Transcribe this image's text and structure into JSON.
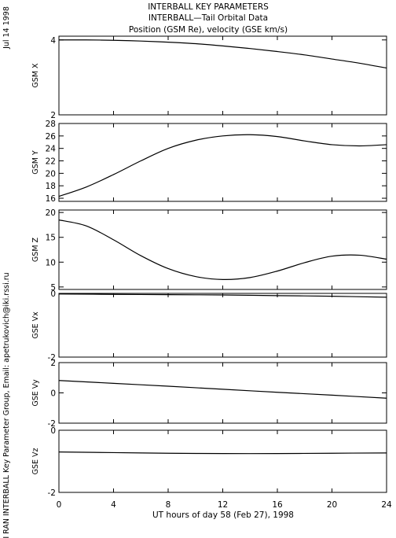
{
  "header": {
    "line1": "INTERBALL KEY PARAMETERS",
    "line2": "INTERBALL—Tail Orbital Data",
    "line3": "Position (GSM Re), velocity (GSE km/s)"
  },
  "side": {
    "date": "Jul 14 1998",
    "credit": "IKI RAN INTERBALL Key Parameter Group, Email: apetrukovich@iki.rssi.ru"
  },
  "chart_data": {
    "type": "line",
    "xlabel": "UT hours of day  58 (Feb 27), 1998",
    "xlim": [
      0,
      24
    ],
    "xticks": [
      0,
      4,
      8,
      12,
      16,
      20,
      24
    ],
    "panels": [
      {
        "name": "GSM X",
        "ylim": [
          2,
          4.1
        ],
        "yticks": [
          2,
          4
        ],
        "x": [
          0,
          2,
          4,
          6,
          8,
          10,
          12,
          14,
          16,
          18,
          20,
          22,
          24
        ],
        "values": [
          4.0,
          4.0,
          3.99,
          3.97,
          3.94,
          3.9,
          3.84,
          3.77,
          3.69,
          3.6,
          3.49,
          3.38,
          3.25
        ]
      },
      {
        "name": "GSM Y",
        "ylim": [
          15.5,
          28
        ],
        "yticks": [
          16,
          18,
          20,
          22,
          24,
          26,
          28
        ],
        "x": [
          0,
          2,
          4,
          6,
          8,
          10,
          12,
          14,
          16,
          18,
          20,
          22,
          24
        ],
        "values": [
          16.3,
          17.8,
          19.8,
          22.0,
          24.0,
          25.3,
          26.0,
          26.2,
          25.9,
          25.2,
          24.6,
          24.4,
          24.6
        ]
      },
      {
        "name": "GSM Z",
        "ylim": [
          4.5,
          20.5
        ],
        "yticks": [
          5,
          10,
          15,
          20
        ],
        "x": [
          0,
          2,
          4,
          6,
          8,
          10,
          12,
          14,
          16,
          18,
          20,
          22,
          24
        ],
        "values": [
          18.5,
          17.3,
          14.5,
          11.3,
          8.7,
          7.1,
          6.5,
          6.9,
          8.2,
          9.9,
          11.2,
          11.4,
          10.6
        ]
      },
      {
        "name": "GSE Vx",
        "ylim": [
          -2,
          0
        ],
        "yticks": [
          -2,
          0
        ],
        "x": [
          0,
          4,
          8,
          12,
          16,
          20,
          24
        ],
        "values": [
          -0.02,
          -0.03,
          -0.04,
          -0.05,
          -0.07,
          -0.09,
          -0.12
        ]
      },
      {
        "name": "GSE Vy",
        "ylim": [
          -2,
          2
        ],
        "yticks": [
          -2,
          0,
          2
        ],
        "x": [
          0,
          4,
          8,
          12,
          16,
          20,
          24
        ],
        "values": [
          0.82,
          0.63,
          0.44,
          0.24,
          0.04,
          -0.15,
          -0.35
        ]
      },
      {
        "name": "GSE Vz",
        "ylim": [
          -2,
          0
        ],
        "yticks": [
          -2,
          0
        ],
        "x": [
          0,
          4,
          8,
          12,
          16,
          20,
          24
        ],
        "values": [
          -0.7,
          -0.72,
          -0.74,
          -0.75,
          -0.75,
          -0.74,
          -0.73
        ]
      }
    ]
  }
}
